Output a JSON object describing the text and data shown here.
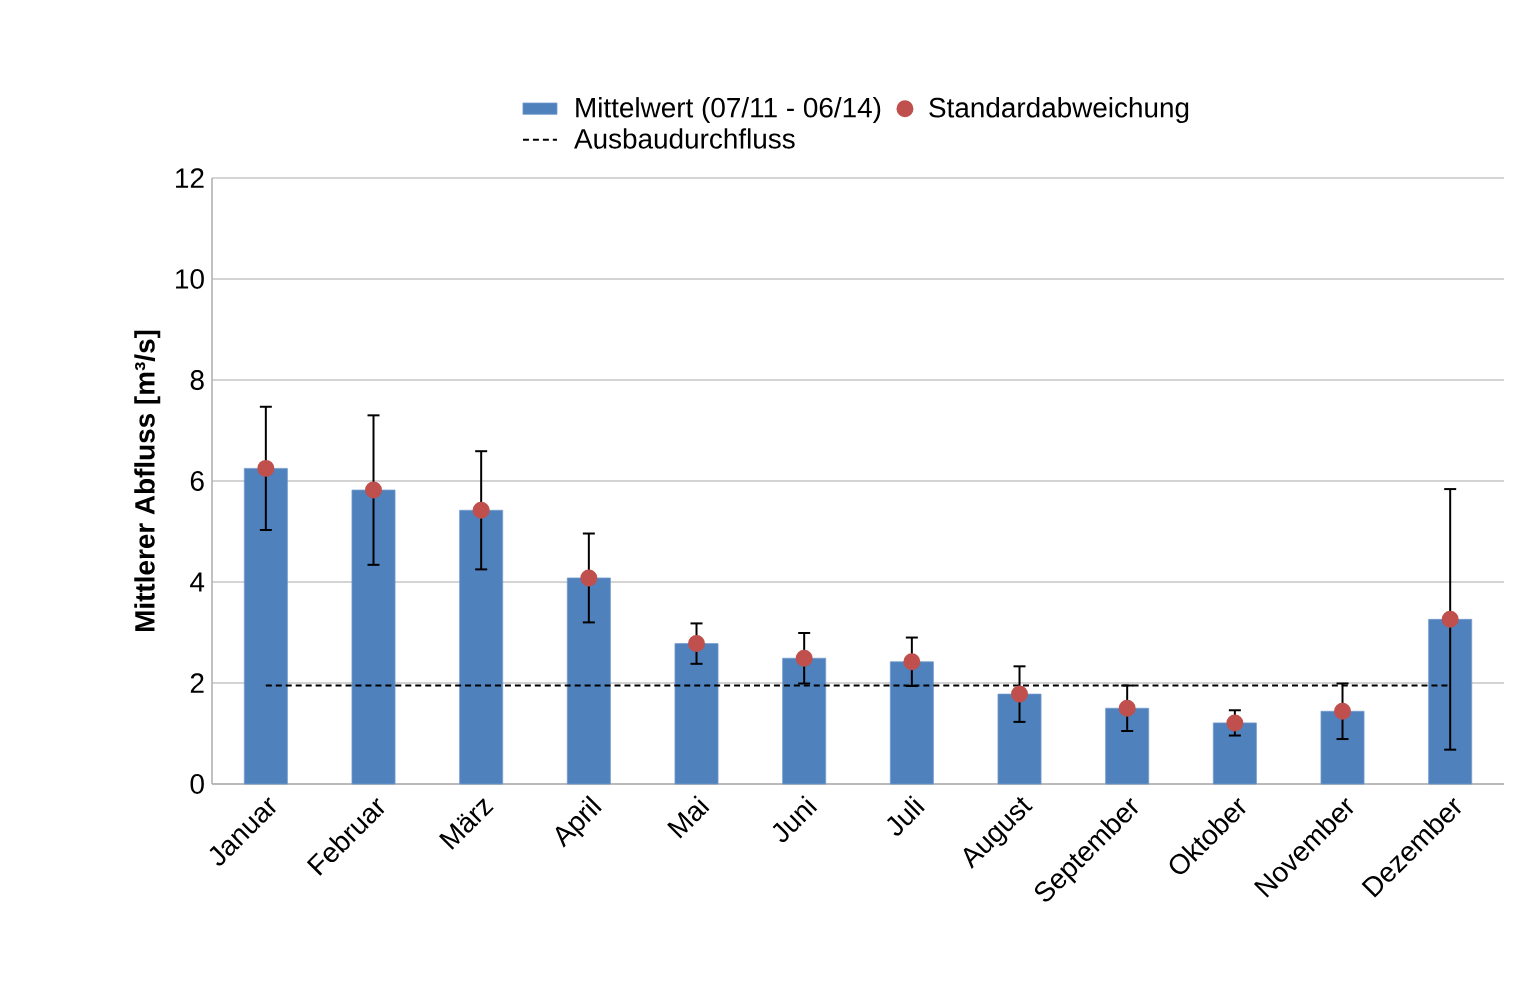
{
  "chart_data": {
    "type": "bar",
    "ylabel": "Mittlerer Abfluss [m³/s]",
    "categories": [
      "Januar",
      "Februar",
      "März",
      "April",
      "Mai",
      "Juni",
      "Juli",
      "August",
      "September",
      "Oktober",
      "November",
      "Dezember"
    ],
    "series": [
      {
        "name": "Mittelwert (07/11 - 06/14)",
        "color": "#4f81bd",
        "values": [
          6.25,
          5.82,
          5.42,
          4.08,
          2.78,
          2.49,
          2.42,
          1.78,
          1.5,
          1.21,
          1.44,
          3.26
        ]
      },
      {
        "name": "Standardabweichung",
        "type": "scatter",
        "color": "#c0504d",
        "x": [
          "Januar",
          "Februar",
          "März",
          "April",
          "Mai",
          "Juni",
          "Juli",
          "August",
          "September",
          "Oktober",
          "November",
          "Dezember"
        ],
        "values": [
          6.25,
          5.82,
          5.42,
          4.08,
          2.78,
          2.49,
          2.42,
          1.78,
          1.5,
          1.21,
          1.44,
          3.26
        ],
        "errors": [
          1.22,
          1.48,
          1.17,
          0.88,
          0.4,
          0.5,
          0.48,
          0.55,
          0.45,
          0.25,
          0.55,
          2.58
        ]
      }
    ],
    "ref_lines": [
      {
        "axis": "y",
        "value": 1.95,
        "label": "Ausbaudurchfluss",
        "color": "#000000",
        "line_style": "dashed"
      }
    ],
    "ylim": [
      0,
      12
    ],
    "yticks": [
      0,
      2,
      4,
      6,
      8,
      10,
      12
    ],
    "grid": "y",
    "legend": "top",
    "marker": "circle"
  }
}
